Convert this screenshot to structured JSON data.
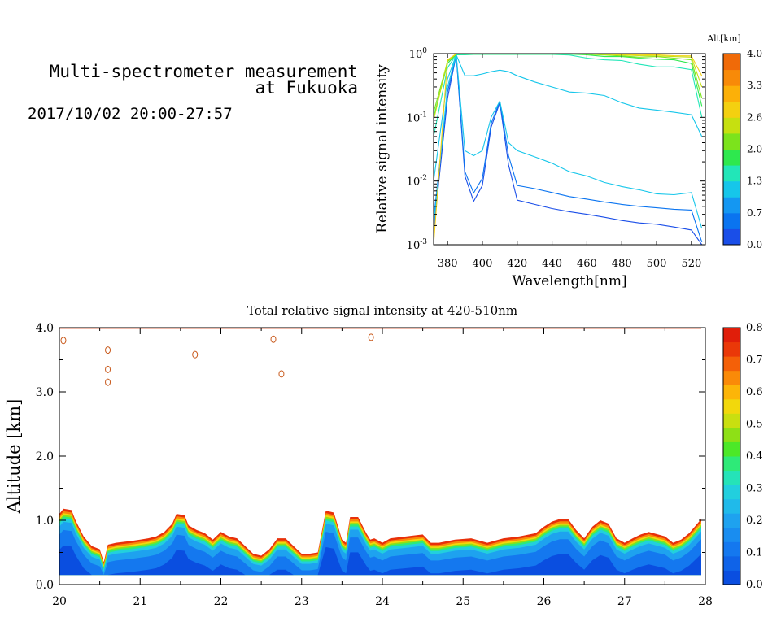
{
  "header": {
    "title_line1": "Multi-spectrometer measurement",
    "title_line2": "at Fukuoka",
    "datetime": "2017/10/02 20:00-27:57"
  },
  "colors": {
    "spectra_colorbar": [
      "#1a4ee8",
      "#0a74f0",
      "#1497f2",
      "#16c6ea",
      "#22e6b8",
      "#2ee84e",
      "#7ce31c",
      "#c6e010",
      "#f4d010",
      "#fcb008",
      "#f88a08",
      "#f06a08"
    ],
    "curtain_colorbar": [
      "#0a4ee0",
      "#0f63e8",
      "#1478ef",
      "#198df0",
      "#1ea2ef",
      "#20baea",
      "#22cfde",
      "#25e3b8",
      "#2eea78",
      "#4ce828",
      "#8ee016",
      "#c9df10",
      "#f2d80c",
      "#fcb508",
      "#fa8a08",
      "#f46008",
      "#ea3808",
      "#e01e0a"
    ]
  },
  "chart_data": [
    {
      "type": "line",
      "xlabel": "Wavelength[nm]",
      "ylabel": "Relative signal intensity",
      "yscale": "log",
      "xlim": [
        372,
        528
      ],
      "ylim": [
        0.001,
        1
      ],
      "xticks": [
        380,
        400,
        420,
        440,
        460,
        480,
        500,
        520
      ],
      "yticks": [
        {
          "value": 0.001,
          "base": "10",
          "exp": "-3"
        },
        {
          "value": 0.01,
          "base": "10",
          "exp": "-2"
        },
        {
          "value": 0.1,
          "base": "10",
          "exp": "-1"
        },
        {
          "value": 1,
          "base": "10",
          "exp": "0"
        }
      ],
      "colorbar": {
        "label": "Alt[km]",
        "range": [
          0,
          4.0
        ],
        "ticks": [
          "0.0",
          "0.7",
          "1.3",
          "2.0",
          "2.6",
          "3.3",
          "4.0"
        ]
      },
      "x": [
        372,
        380,
        385,
        390,
        395,
        400,
        405,
        410,
        415,
        420,
        430,
        440,
        450,
        460,
        470,
        480,
        490,
        500,
        510,
        520,
        526
      ],
      "series": [
        {
          "color": "#1a4ee8",
          "values": [
            0.0016,
            0.2,
            0.95,
            0.012,
            0.0048,
            0.0085,
            0.07,
            0.17,
            0.018,
            0.005,
            0.0043,
            0.0037,
            0.0033,
            0.003,
            0.0027,
            0.0024,
            0.0022,
            0.0021,
            0.0019,
            0.0017,
            0.001
          ]
        },
        {
          "color": "#0a74f0",
          "values": [
            0.0025,
            0.25,
            0.95,
            0.014,
            0.0065,
            0.011,
            0.08,
            0.18,
            0.025,
            0.0085,
            0.0076,
            0.0066,
            0.0057,
            0.0052,
            0.0047,
            0.0043,
            0.004,
            0.0038,
            0.0036,
            0.0035,
            0.0011
          ]
        },
        {
          "color": "#16c6ea",
          "values": [
            0.002,
            0.3,
            0.95,
            0.03,
            0.025,
            0.03,
            0.1,
            0.18,
            0.04,
            0.03,
            0.024,
            0.019,
            0.014,
            0.012,
            0.0095,
            0.0082,
            0.0073,
            0.0063,
            0.0061,
            0.0066,
            0.0018
          ]
        },
        {
          "color": "#16c6ea",
          "values": [
            0.01,
            0.4,
            0.96,
            0.45,
            0.45,
            0.48,
            0.52,
            0.55,
            0.52,
            0.45,
            0.36,
            0.3,
            0.25,
            0.24,
            0.22,
            0.17,
            0.14,
            0.13,
            0.12,
            0.11,
            0.05
          ]
        },
        {
          "color": "#22e6b8",
          "values": [
            0.05,
            0.6,
            0.96,
            0.96,
            0.97,
            0.97,
            0.97,
            0.97,
            0.97,
            0.97,
            0.97,
            0.97,
            0.95,
            0.85,
            0.8,
            0.78,
            0.68,
            0.62,
            0.62,
            0.56,
            0.1
          ]
        },
        {
          "color": "#2ee84e",
          "values": [
            0.1,
            0.7,
            0.98,
            0.98,
            0.98,
            0.98,
            0.98,
            0.98,
            0.98,
            0.98,
            0.98,
            0.98,
            0.98,
            0.96,
            0.9,
            0.9,
            0.85,
            0.82,
            0.8,
            0.7,
            0.15
          ]
        },
        {
          "color": "#7ce31c",
          "values": [
            0.12,
            0.75,
            0.99,
            0.99,
            0.99,
            0.99,
            0.99,
            0.99,
            0.99,
            0.99,
            0.99,
            0.99,
            0.99,
            0.98,
            0.95,
            0.92,
            0.88,
            0.9,
            0.85,
            0.8,
            0.2
          ]
        },
        {
          "color": "#c6e010",
          "values": [
            0.09,
            0.78,
            0.99,
            0.99,
            0.99,
            0.99,
            0.99,
            0.99,
            0.99,
            0.99,
            0.99,
            0.99,
            0.99,
            0.99,
            0.97,
            0.95,
            0.93,
            0.92,
            0.9,
            0.88,
            0.3
          ]
        },
        {
          "color": "#f4d010",
          "values": [
            0.001,
            0.8,
            0.99,
            0.99,
            0.99,
            0.99,
            0.99,
            0.99,
            0.99,
            0.99,
            0.99,
            0.99,
            0.99,
            0.99,
            0.98,
            0.97,
            0.95,
            0.96,
            0.93,
            0.92,
            0.45
          ]
        }
      ]
    },
    {
      "type": "heatmap",
      "title": "Total relative signal intensity at 420-510nm",
      "ylabel": "Altitude [km]",
      "xlim": [
        20,
        28
      ],
      "ylim": [
        0,
        4.0
      ],
      "xticks": [
        "20",
        "21",
        "22",
        "23",
        "24",
        "25",
        "26",
        "27",
        "28"
      ],
      "yticks": [
        "0.0",
        "1.0",
        "2.0",
        "3.0",
        "4.0"
      ],
      "colorbar": {
        "range": [
          0,
          0.8
        ],
        "ticks": [
          "0.0",
          "0.1",
          "0.2",
          "0.3",
          "0.4",
          "0.5",
          "0.6",
          "0.7",
          "0.8"
        ]
      },
      "data_start_time": 20.0,
      "data_end_time": 27.95,
      "data_bottom_altitude": 0.15,
      "cloud_top_profile": {
        "time": [
          20.0,
          20.05,
          20.15,
          20.2,
          20.3,
          20.4,
          20.5,
          20.55,
          20.6,
          20.7,
          20.9,
          21.0,
          21.1,
          21.2,
          21.3,
          21.4,
          21.45,
          21.55,
          21.6,
          21.7,
          21.8,
          21.9,
          22.0,
          22.1,
          22.2,
          22.3,
          22.4,
          22.5,
          22.6,
          22.7,
          22.8,
          22.9,
          23.0,
          23.1,
          23.2,
          23.3,
          23.4,
          23.5,
          23.55,
          23.6,
          23.7,
          23.8,
          23.85,
          23.9,
          24.0,
          24.1,
          24.3,
          24.5,
          24.6,
          24.7,
          24.9,
          25.1,
          25.3,
          25.5,
          25.7,
          25.9,
          26.0,
          26.1,
          26.2,
          26.3,
          26.4,
          26.5,
          26.6,
          26.7,
          26.8,
          26.9,
          27.0,
          27.1,
          27.2,
          27.3,
          27.5,
          27.6,
          27.7,
          27.8,
          27.95
        ],
        "altitude": [
          1.1,
          1.18,
          1.16,
          1.0,
          0.75,
          0.6,
          0.55,
          0.35,
          0.62,
          0.65,
          0.68,
          0.7,
          0.72,
          0.75,
          0.82,
          0.95,
          1.1,
          1.08,
          0.92,
          0.85,
          0.8,
          0.7,
          0.82,
          0.75,
          0.72,
          0.6,
          0.48,
          0.45,
          0.55,
          0.72,
          0.72,
          0.6,
          0.48,
          0.48,
          0.5,
          1.15,
          1.12,
          0.7,
          0.65,
          1.05,
          1.05,
          0.8,
          0.7,
          0.72,
          0.65,
          0.72,
          0.75,
          0.78,
          0.65,
          0.65,
          0.7,
          0.72,
          0.65,
          0.72,
          0.75,
          0.8,
          0.9,
          0.98,
          1.02,
          1.02,
          0.85,
          0.72,
          0.9,
          1.0,
          0.95,
          0.72,
          0.65,
          0.72,
          0.78,
          0.82,
          0.75,
          0.65,
          0.7,
          0.8,
          1.02
        ]
      },
      "high_cloud_contours": [
        {
          "time": 20.05,
          "altitude": 3.8
        },
        {
          "time": 20.6,
          "altitude": 3.65
        },
        {
          "time": 20.6,
          "altitude": 3.35
        },
        {
          "time": 20.6,
          "altitude": 3.15
        },
        {
          "time": 21.68,
          "altitude": 3.58
        },
        {
          "time": 22.65,
          "altitude": 3.82
        },
        {
          "time": 22.75,
          "altitude": 3.28
        },
        {
          "time": 23.86,
          "altitude": 3.85
        }
      ]
    }
  ]
}
